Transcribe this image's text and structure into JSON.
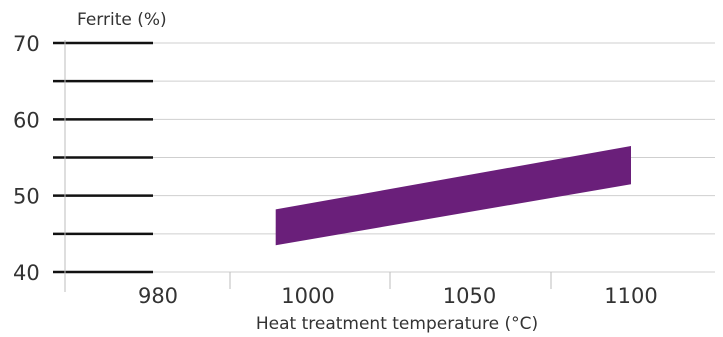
{
  "chart_data": {
    "type": "area",
    "ylabel": "Ferrite (%)",
    "xlabel": "Heat treatment temperature (°C)",
    "ylim": [
      40,
      70
    ],
    "y_ticks": [
      40,
      50,
      60,
      70
    ],
    "x_ticks": [
      980,
      1000,
      1050,
      1100
    ],
    "grid": "horizontal",
    "series": [
      {
        "color": "#6a1f7a",
        "x": [
          990,
          1100
        ],
        "lower": [
          43.5,
          51.5
        ],
        "upper": [
          48.2,
          56.5
        ]
      }
    ]
  }
}
